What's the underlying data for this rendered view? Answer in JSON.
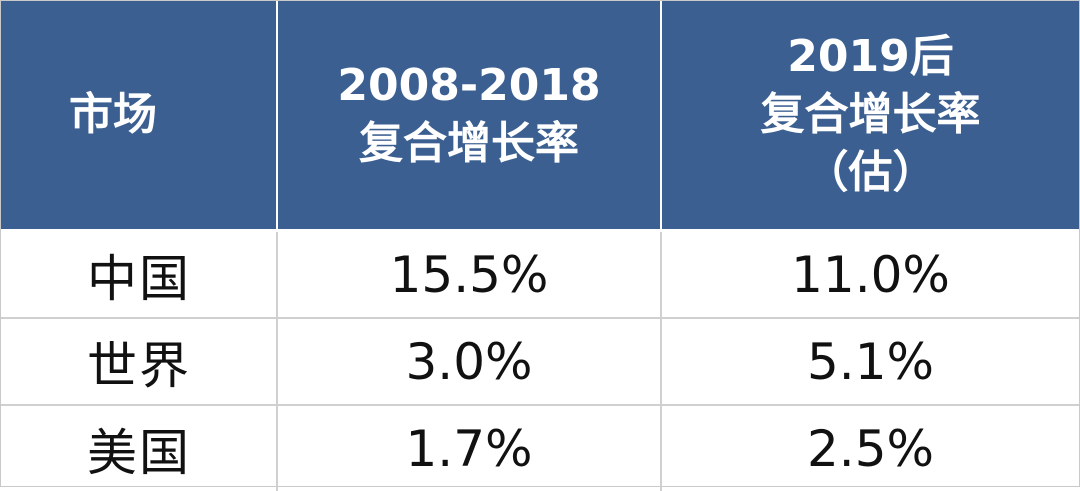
{
  "chart_data": {
    "type": "table",
    "columns": [
      {
        "lines": [
          "市场"
        ]
      },
      {
        "lines": [
          "2008-2018",
          "复合增长率"
        ]
      },
      {
        "lines": [
          "2019后",
          "复合增长率",
          "（估）"
        ]
      }
    ],
    "rows": [
      {
        "market": "中国",
        "cagr_2008_2018": "15.5%",
        "cagr_2019_est": "11.0%"
      },
      {
        "market": "世界",
        "cagr_2008_2018": "3.0%",
        "cagr_2019_est": "5.1%"
      },
      {
        "market": "美国",
        "cagr_2008_2018": "1.7%",
        "cagr_2019_est": "2.5%"
      }
    ],
    "values_percent": {
      "cagr_2008_2018": [
        15.5,
        3.0,
        1.7
      ],
      "cagr_2019_est": [
        11.0,
        5.1,
        2.5
      ]
    }
  },
  "colors": {
    "header_background": "#3b5f91",
    "header_text": "#ffffff",
    "body_text": "#111111",
    "grid_line": "#d0d0d0"
  }
}
